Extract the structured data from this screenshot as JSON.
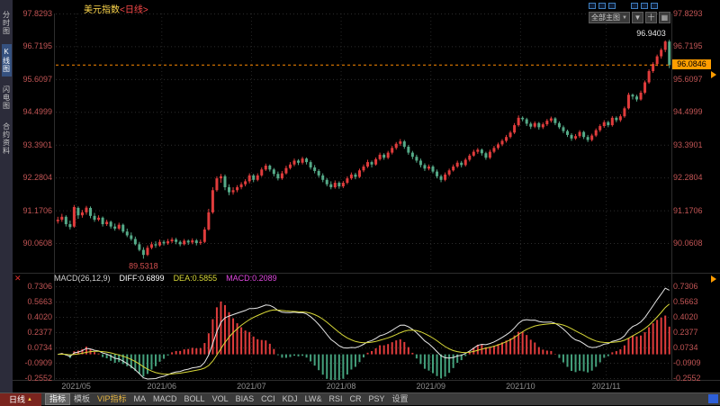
{
  "header": {
    "title": "美元指数",
    "period_tag": "<日线>",
    "toolbar": {
      "view_select": "全部主图",
      "square_count": 6,
      "buttons": [
        {
          "key": "dropdown",
          "glyph": "▼"
        },
        {
          "key": "crosshair",
          "glyph": "十"
        },
        {
          "key": "grid-layout",
          "glyph": "▦"
        }
      ]
    }
  },
  "icons": {
    "dropdown": "▼",
    "close": "✕",
    "up_arrow": "▲"
  },
  "sidebar": {
    "items": [
      {
        "key": "time-share",
        "label": "分时图",
        "active": false
      },
      {
        "key": "kline",
        "label": "K线图",
        "active": true
      },
      {
        "key": "flash",
        "label": "闪电图",
        "active": false
      },
      {
        "key": "contract-info",
        "label": "合约资料",
        "active": false
      }
    ]
  },
  "main_chart": {
    "axis_values": [
      "97.8293",
      "96.7195",
      "95.6097",
      "94.4999",
      "93.3901",
      "92.2804",
      "91.1706",
      "90.0608"
    ],
    "high_label": "96.9403",
    "low_label": "89.5318",
    "last_price": "96.0846",
    "colors": {
      "up": "#e03c3c",
      "down": "#55aa88",
      "grid": "#2d2d2d",
      "axis_text": "#c25555",
      "last_price_line": "#ff8a00"
    }
  },
  "macd_panel": {
    "header": {
      "name": "MACD(26,12,9)",
      "diff_label": "DIFF:0.6899",
      "dea_label": "DEA:0.5855",
      "macd_label": "MACD:0.2089"
    },
    "axis_values": [
      "0.7306",
      "0.5663",
      "0.4020",
      "0.2377",
      "0.0734",
      "-0.0909",
      "-0.2552"
    ],
    "colors": {
      "diff": "#e8e8e8",
      "dea": "#d8d838",
      "hist_pos": "#e03c3c",
      "hist_neg": "#44a07c",
      "macd_text": "#e048e0"
    }
  },
  "bottom_bar": {
    "period_button": "日线",
    "tabs": [
      {
        "key": "indicators",
        "label": "指标",
        "active": true
      },
      {
        "key": "templates",
        "label": "模板"
      },
      {
        "key": "vip-indicators",
        "label": "VIP指标",
        "vip": true
      },
      {
        "key": "ma",
        "label": "MA"
      },
      {
        "key": "macd",
        "label": "MACD"
      },
      {
        "key": "boll",
        "label": "BOLL"
      },
      {
        "key": "vol",
        "label": "VOL"
      },
      {
        "key": "bias",
        "label": "BIAS"
      },
      {
        "key": "cci",
        "label": "CCI"
      },
      {
        "key": "kdj",
        "label": "KDJ"
      },
      {
        "key": "lw",
        "label": "LW&"
      },
      {
        "key": "rsi",
        "label": "RSI"
      },
      {
        "key": "cr",
        "label": "CR"
      },
      {
        "key": "psy",
        "label": "PSY"
      },
      {
        "key": "settings",
        "label": "设置"
      }
    ]
  },
  "chart_data": {
    "type": "candlestick",
    "title": "美元指数 日线",
    "period": "日线",
    "months": [
      "2021/05",
      "2021/06",
      "2021/07",
      "2021/08",
      "2021/09",
      "2021/10",
      "2021/11"
    ],
    "month_start_indices": [
      5,
      26,
      48,
      70,
      92,
      114,
      135
    ],
    "y_axis_main": [
      97.8293,
      96.7195,
      95.6097,
      94.4999,
      93.3901,
      92.2804,
      91.1706,
      90.0608
    ],
    "y_axis_macd": [
      0.7306,
      0.5663,
      0.402,
      0.2377,
      0.0734,
      -0.0909,
      -0.2552
    ],
    "last_price": 96.0846,
    "high": 96.9403,
    "high_index": 150,
    "low": 89.5318,
    "low_index": 21,
    "macd": {
      "fast": 12,
      "slow": 26,
      "signal": 9,
      "diff": 0.6899,
      "dea": 0.5855,
      "bar": 0.2089
    },
    "candles": [
      [
        90.8,
        90.95,
        90.72,
        90.85
      ],
      [
        90.85,
        91.05,
        90.78,
        90.95
      ],
      [
        90.95,
        91.0,
        90.62,
        90.7
      ],
      [
        90.7,
        90.82,
        90.52,
        90.6
      ],
      [
        90.62,
        91.35,
        90.58,
        91.28
      ],
      [
        91.25,
        91.3,
        90.88,
        91.0
      ],
      [
        91.0,
        91.18,
        90.92,
        91.1
      ],
      [
        91.1,
        91.32,
        91.02,
        91.26
      ],
      [
        91.25,
        91.3,
        90.9,
        90.98
      ],
      [
        90.98,
        91.08,
        90.78,
        90.85
      ],
      [
        90.85,
        91.0,
        90.8,
        90.92
      ],
      [
        90.92,
        90.96,
        90.62,
        90.7
      ],
      [
        90.7,
        90.85,
        90.64,
        90.78
      ],
      [
        90.78,
        90.82,
        90.55,
        90.62
      ],
      [
        90.62,
        90.72,
        90.48,
        90.55
      ],
      [
        90.55,
        90.75,
        90.5,
        90.68
      ],
      [
        90.68,
        90.72,
        90.4,
        90.45
      ],
      [
        90.45,
        90.55,
        90.26,
        90.32
      ],
      [
        90.32,
        90.42,
        90.14,
        90.2
      ],
      [
        90.2,
        90.28,
        89.98,
        90.02
      ],
      [
        90.02,
        90.1,
        89.78,
        89.83
      ],
      [
        89.83,
        89.92,
        89.5318,
        89.66
      ],
      [
        89.66,
        89.98,
        89.62,
        89.9
      ],
      [
        89.9,
        90.1,
        89.85,
        90.02
      ],
      [
        90.02,
        90.12,
        89.9,
        89.98
      ],
      [
        89.98,
        90.18,
        89.94,
        90.1
      ],
      [
        90.1,
        90.16,
        89.98,
        90.05
      ],
      [
        90.05,
        90.2,
        90.0,
        90.12
      ],
      [
        90.12,
        90.25,
        90.06,
        90.18
      ],
      [
        90.18,
        90.24,
        90.02,
        90.1
      ],
      [
        90.1,
        90.15,
        89.95,
        90.02
      ],
      [
        90.02,
        90.2,
        89.98,
        90.14
      ],
      [
        90.14,
        90.18,
        90.0,
        90.08
      ],
      [
        90.08,
        90.22,
        90.02,
        90.15
      ],
      [
        90.15,
        90.2,
        89.98,
        90.06
      ],
      [
        90.06,
        90.18,
        90.0,
        90.1
      ],
      [
        90.1,
        90.6,
        90.06,
        90.52
      ],
      [
        90.52,
        91.22,
        90.48,
        91.1
      ],
      [
        91.1,
        91.95,
        91.05,
        91.85
      ],
      [
        91.85,
        92.32,
        91.8,
        92.25
      ],
      [
        92.25,
        92.4,
        92.1,
        92.32
      ],
      [
        92.32,
        92.38,
        91.85,
        91.95
      ],
      [
        91.95,
        92.05,
        91.68,
        91.78
      ],
      [
        91.78,
        91.95,
        91.7,
        91.85
      ],
      [
        91.85,
        92.02,
        91.78,
        91.95
      ],
      [
        91.95,
        92.12,
        91.88,
        92.05
      ],
      [
        92.05,
        92.22,
        91.98,
        92.15
      ],
      [
        92.15,
        92.42,
        92.08,
        92.35
      ],
      [
        92.35,
        92.4,
        92.12,
        92.2
      ],
      [
        92.2,
        92.42,
        92.15,
        92.35
      ],
      [
        92.35,
        92.62,
        92.3,
        92.55
      ],
      [
        92.55,
        92.75,
        92.5,
        92.68
      ],
      [
        92.68,
        92.72,
        92.48,
        92.55
      ],
      [
        92.55,
        92.6,
        92.32,
        92.4
      ],
      [
        92.4,
        92.48,
        92.18,
        92.25
      ],
      [
        92.25,
        92.5,
        92.2,
        92.42
      ],
      [
        92.42,
        92.68,
        92.38,
        92.6
      ],
      [
        92.6,
        92.8,
        92.55,
        92.72
      ],
      [
        92.72,
        92.92,
        92.66,
        92.85
      ],
      [
        92.85,
        92.9,
        92.7,
        92.78
      ],
      [
        92.78,
        92.98,
        92.72,
        92.92
      ],
      [
        92.92,
        92.96,
        92.72,
        92.8
      ],
      [
        92.8,
        92.86,
        92.55,
        92.62
      ],
      [
        92.62,
        92.7,
        92.42,
        92.5
      ],
      [
        92.5,
        92.56,
        92.28,
        92.35
      ],
      [
        92.35,
        92.42,
        92.12,
        92.2
      ],
      [
        92.2,
        92.26,
        91.98,
        92.05
      ],
      [
        92.05,
        92.15,
        91.88,
        91.95
      ],
      [
        91.95,
        92.18,
        91.9,
        92.1
      ],
      [
        92.1,
        92.15,
        91.9,
        91.98
      ],
      [
        91.98,
        92.16,
        91.92,
        92.1
      ],
      [
        92.1,
        92.32,
        92.05,
        92.25
      ],
      [
        92.25,
        92.45,
        92.2,
        92.38
      ],
      [
        92.38,
        92.44,
        92.22,
        92.3
      ],
      [
        92.3,
        92.58,
        92.26,
        92.52
      ],
      [
        92.52,
        92.72,
        92.46,
        92.65
      ],
      [
        92.65,
        92.88,
        92.6,
        92.8
      ],
      [
        92.8,
        92.85,
        92.62,
        92.72
      ],
      [
        92.72,
        92.96,
        92.68,
        92.9
      ],
      [
        92.9,
        93.12,
        92.85,
        93.05
      ],
      [
        93.05,
        93.1,
        92.88,
        92.95
      ],
      [
        92.95,
        93.18,
        92.9,
        93.12
      ],
      [
        93.12,
        93.35,
        93.06,
        93.28
      ],
      [
        93.28,
        93.48,
        93.22,
        93.42
      ],
      [
        93.42,
        93.58,
        93.35,
        93.5
      ],
      [
        93.5,
        93.55,
        93.25,
        93.32
      ],
      [
        93.32,
        93.38,
        93.05,
        93.12
      ],
      [
        93.12,
        93.18,
        92.9,
        92.98
      ],
      [
        92.98,
        93.05,
        92.78,
        92.85
      ],
      [
        92.85,
        92.92,
        92.62,
        92.7
      ],
      [
        92.7,
        92.76,
        92.5,
        92.58
      ],
      [
        92.58,
        92.72,
        92.52,
        92.65
      ],
      [
        92.65,
        92.7,
        92.42,
        92.48
      ],
      [
        92.48,
        92.55,
        92.25,
        92.32
      ],
      [
        92.32,
        92.38,
        92.12,
        92.2
      ],
      [
        92.2,
        92.45,
        92.15,
        92.38
      ],
      [
        92.38,
        92.58,
        92.32,
        92.52
      ],
      [
        92.52,
        92.72,
        92.48,
        92.65
      ],
      [
        92.65,
        92.85,
        92.6,
        92.78
      ],
      [
        92.78,
        92.84,
        92.62,
        92.7
      ],
      [
        92.7,
        92.94,
        92.65,
        92.88
      ],
      [
        92.88,
        93.08,
        92.82,
        93.02
      ],
      [
        93.02,
        93.22,
        92.98,
        93.15
      ],
      [
        93.15,
        93.28,
        93.08,
        93.22
      ],
      [
        93.22,
        93.26,
        93.02,
        93.1
      ],
      [
        93.1,
        93.15,
        92.88,
        92.95
      ],
      [
        92.95,
        93.22,
        92.9,
        93.15
      ],
      [
        93.15,
        93.35,
        93.1,
        93.28
      ],
      [
        93.28,
        93.46,
        93.22,
        93.4
      ],
      [
        93.4,
        93.58,
        93.34,
        93.52
      ],
      [
        93.52,
        93.72,
        93.46,
        93.65
      ],
      [
        93.65,
        93.86,
        93.6,
        93.8
      ],
      [
        93.8,
        94.12,
        93.75,
        94.05
      ],
      [
        94.05,
        94.38,
        94.0,
        94.3
      ],
      [
        94.3,
        94.35,
        94.18,
        94.25
      ],
      [
        94.25,
        94.3,
        94.02,
        94.1
      ],
      [
        94.1,
        94.16,
        93.92,
        94.0
      ],
      [
        94.0,
        94.18,
        93.95,
        94.12
      ],
      [
        94.12,
        94.16,
        93.9,
        93.98
      ],
      [
        93.98,
        94.14,
        93.92,
        94.08
      ],
      [
        94.08,
        94.26,
        94.02,
        94.2
      ],
      [
        94.2,
        94.34,
        94.14,
        94.28
      ],
      [
        94.28,
        94.32,
        94.05,
        94.12
      ],
      [
        94.12,
        94.18,
        93.92,
        93.98
      ],
      [
        93.98,
        94.04,
        93.78,
        93.85
      ],
      [
        93.85,
        93.9,
        93.65,
        93.72
      ],
      [
        93.72,
        93.78,
        93.52,
        93.6
      ],
      [
        93.6,
        93.75,
        93.55,
        93.68
      ],
      [
        93.68,
        93.88,
        93.62,
        93.82
      ],
      [
        93.82,
        93.86,
        93.58,
        93.65
      ],
      [
        93.65,
        93.72,
        93.48,
        93.55
      ],
      [
        93.55,
        93.76,
        93.5,
        93.7
      ],
      [
        93.7,
        93.94,
        93.65,
        93.88
      ],
      [
        93.88,
        94.08,
        93.82,
        94.02
      ],
      [
        94.02,
        94.22,
        93.96,
        94.15
      ],
      [
        94.15,
        94.2,
        93.98,
        94.05
      ],
      [
        94.05,
        94.36,
        94.0,
        94.3
      ],
      [
        94.3,
        94.35,
        94.15,
        94.22
      ],
      [
        94.22,
        94.42,
        94.16,
        94.35
      ],
      [
        94.35,
        94.68,
        94.3,
        94.62
      ],
      [
        94.62,
        95.15,
        94.58,
        95.08
      ],
      [
        95.08,
        95.12,
        94.92,
        95.02
      ],
      [
        95.02,
        95.08,
        94.85,
        94.92
      ],
      [
        94.92,
        95.22,
        94.88,
        95.15
      ],
      [
        95.15,
        95.56,
        95.1,
        95.5
      ],
      [
        95.5,
        95.94,
        95.45,
        95.88
      ],
      [
        95.88,
        96.18,
        95.82,
        96.12
      ],
      [
        96.12,
        96.44,
        96.05,
        96.38
      ],
      [
        96.38,
        96.66,
        96.3,
        96.6
      ],
      [
        96.6,
        96.92,
        96.52,
        96.88
      ],
      [
        96.88,
        96.9403,
        95.98,
        96.0846
      ]
    ]
  }
}
